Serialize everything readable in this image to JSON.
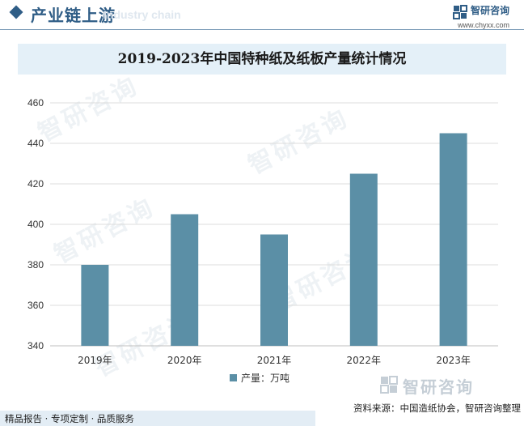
{
  "header": {
    "title": "产业链上游",
    "ghost_text": "Industry chain",
    "logo_name": "智研咨询",
    "logo_url": "www.chyxx.com"
  },
  "watermark_text": "智研咨询",
  "legend": {
    "label": "产量：万吨"
  },
  "source_logo": {
    "name": "智研咨询"
  },
  "source": "资料来源：中国造纸协会，智研咨询整理",
  "footer": "精品报告 · 专项定制 · 品质服务",
  "colors": {
    "bar": "#5b8fa6",
    "brand": "#2f5d86",
    "title_bg": "#e4f0f8",
    "grid": "#dcdcdc"
  },
  "chart_data": {
    "type": "bar",
    "title": "2019-2023年中国特种纸及纸板产量统计情况",
    "categories": [
      "2019年",
      "2020年",
      "2021年",
      "2022年",
      "2023年"
    ],
    "series": [
      {
        "name": "产量：万吨",
        "values": [
          380,
          405,
          395,
          425,
          445
        ]
      }
    ],
    "ylim": [
      340,
      460
    ],
    "yticks": [
      340,
      360,
      380,
      400,
      420,
      440,
      460
    ],
    "xlabel": "",
    "ylabel": "",
    "grid": true,
    "legend_position": "bottom"
  }
}
